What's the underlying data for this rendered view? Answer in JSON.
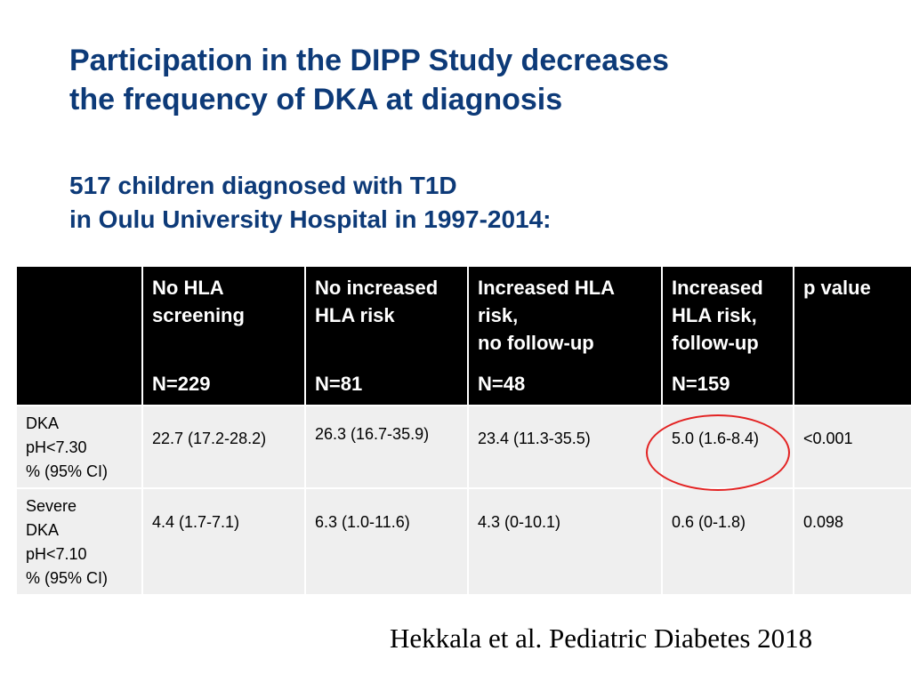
{
  "title": {
    "line1": "Participation in the DIPP Study decreases",
    "line2": "the frequency of DKA at diagnosis"
  },
  "subtitle": {
    "line1": "517 children diagnosed with T1D",
    "line2": "in Oulu University Hospital in 1997-2014:"
  },
  "table": {
    "columns": [
      {
        "header_lines": [
          "No HLA",
          "screening"
        ],
        "n": "N=229"
      },
      {
        "header_lines": [
          "No increased",
          "HLA risk"
        ],
        "n": "N=81"
      },
      {
        "header_lines": [
          "Increased HLA",
          "risk,",
          "no follow-up"
        ],
        "n": "N=48"
      },
      {
        "header_lines": [
          "Increased",
          "HLA risk,",
          "follow-up"
        ],
        "n": "N=159"
      },
      {
        "header_lines": [
          "p value"
        ],
        "n": ""
      }
    ],
    "rows": [
      {
        "label_lines": [
          "DKA",
          "pH<7.30",
          "% (95% CI)"
        ],
        "values": [
          "22.7 (17.2-28.2)",
          "26.3 (16.7-35.9)",
          "23.4 (11.3-35.5)",
          "5.0 (1.6-8.4)",
          "<0.001"
        ]
      },
      {
        "label_lines": [
          "Severe",
          "DKA",
          "pH<7.10",
          "% (95% CI)"
        ],
        "values": [
          "4.4 (1.7-7.1)",
          "6.3 (1.0-11.6)",
          "4.3 (0-10.1)",
          "0.6 (0-1.8)",
          "0.098"
        ]
      }
    ]
  },
  "highlight_color": "#e32222",
  "header_color": "#0d3a78",
  "citation": "Hekkala et al. Pediatric Diabetes 2018"
}
